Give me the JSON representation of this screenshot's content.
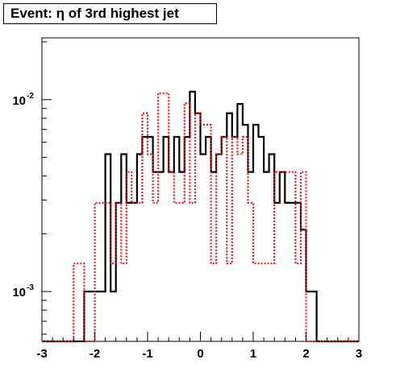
{
  "title": "Event: η of 3rd highest jet",
  "chart_data": {
    "type": "histogram",
    "title": "Event: η of 3rd highest jet",
    "xlabel": "",
    "ylabel": "",
    "xlim": [
      -3,
      3
    ],
    "ylim": [
      0.00055,
      0.021
    ],
    "yscale": "log",
    "grid": false,
    "x_ticks": [
      "-3",
      "-2",
      "-1",
      "0",
      "1",
      "2",
      "3"
    ],
    "y_tick_labels": [
      {
        "value": 0.01,
        "base": "10",
        "exp": "-2"
      },
      {
        "value": 0.001,
        "base": "10",
        "exp": "-3"
      }
    ],
    "bin_edges": [
      -3.0,
      -2.8,
      -2.6,
      -2.4,
      -2.2,
      -2.0,
      -1.8,
      -1.7,
      -1.6,
      -1.5,
      -1.4,
      -1.3,
      -1.2,
      -1.1,
      -1.0,
      -0.9,
      -0.8,
      -0.7,
      -0.6,
      -0.5,
      -0.4,
      -0.3,
      -0.2,
      -0.1,
      0.0,
      0.1,
      0.2,
      0.3,
      0.4,
      0.5,
      0.6,
      0.7,
      0.8,
      0.9,
      1.0,
      1.1,
      1.2,
      1.3,
      1.4,
      1.5,
      1.6,
      1.7,
      1.8,
      1.9,
      2.0,
      2.1,
      2.2,
      2.3,
      2.4,
      3.0
    ],
    "series": [
      {
        "color": "#000000",
        "line_style": "solid",
        "values": [
          0.0005,
          0.0005,
          0.0005,
          0.0005,
          0.001,
          0.001,
          0.0052,
          0.001,
          0.0029,
          0.0052,
          0.0029,
          0.0029,
          0.0052,
          0.0064,
          0.0064,
          0.0042,
          0.0042,
          0.0064,
          0.0042,
          0.0064,
          0.0042,
          0.0064,
          0.011,
          0.0085,
          0.0052,
          0.0064,
          0.0042,
          0.0052,
          0.0064,
          0.0085,
          0.0064,
          0.0095,
          0.0074,
          0.0042,
          0.0074,
          0.0064,
          0.0042,
          0.0052,
          0.0029,
          0.0042,
          0.0029,
          0.0029,
          0.0029,
          0.0021,
          0.001,
          0.001,
          0.0005,
          0.0005,
          0.0005
        ]
      },
      {
        "color": "#ff0000",
        "line_style": "dotted",
        "values": [
          0.0005,
          0.0005,
          0.0005,
          0.0014,
          0.0005,
          0.0029,
          0.0029,
          0.0014,
          0.0029,
          0.0014,
          0.0042,
          0.0029,
          0.0029,
          0.0085,
          0.0052,
          0.0029,
          0.0108,
          0.0108,
          0.0042,
          0.0029,
          0.0029,
          0.0096,
          0.0029,
          0.0085,
          0.0074,
          0.0074,
          0.0014,
          0.0052,
          0.0064,
          0.0014,
          0.0064,
          0.0052,
          0.0064,
          0.0029,
          0.0014,
          0.0014,
          0.0014,
          0.0014,
          0.0042,
          0.0042,
          0.0042,
          0.0042,
          0.0014,
          0.0042,
          0.0005,
          0.0005,
          0.0005,
          0.0005,
          0.0005
        ]
      }
    ]
  }
}
